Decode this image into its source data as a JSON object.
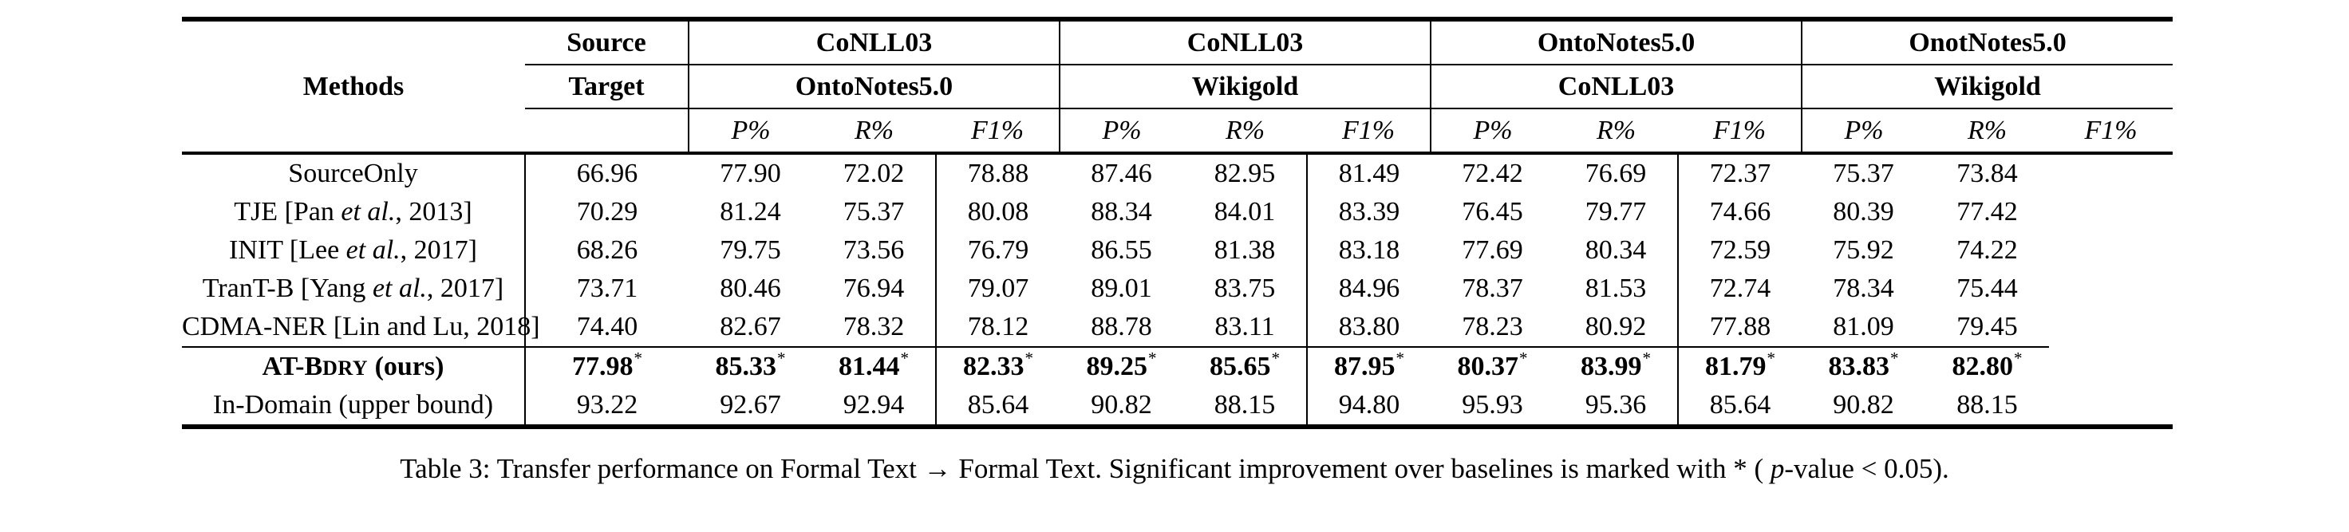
{
  "table": {
    "header": {
      "methods_label": "Methods",
      "source_label": "Source",
      "target_label": "Target",
      "groups": [
        {
          "source": "CoNLL03",
          "target": "OntoNotes5.0"
        },
        {
          "source": "CoNLL03",
          "target": "Wikigold"
        },
        {
          "source": "OntoNotes5.0",
          "target": "CoNLL03"
        },
        {
          "source": "OnotNotes5.0",
          "target": "Wikigold"
        }
      ],
      "metrics": [
        "P%",
        "R%",
        "F1%"
      ]
    },
    "star_marker": "*",
    "rows": [
      {
        "section": "baselines",
        "label": {
          "pre": "SourceOnly"
        },
        "values": [
          "66.96",
          "77.90",
          "72.02",
          "78.88",
          "87.46",
          "82.95",
          "81.49",
          "72.42",
          "76.69",
          "72.37",
          "75.37",
          "73.84"
        ]
      },
      {
        "section": "baselines",
        "label": {
          "pre": "TJE [Pan ",
          "italic": "et al.",
          "post": ", 2013]"
        },
        "values": [
          "70.29",
          "81.24",
          "75.37",
          "80.08",
          "88.34",
          "84.01",
          "83.39",
          "76.45",
          "79.77",
          "74.66",
          "80.39",
          "77.42"
        ]
      },
      {
        "section": "baselines",
        "label": {
          "pre": "INIT [Lee ",
          "italic": "et al.",
          "post": ", 2017]"
        },
        "values": [
          "68.26",
          "79.75",
          "73.56",
          "76.79",
          "86.55",
          "81.38",
          "83.18",
          "77.69",
          "80.34",
          "72.59",
          "75.92",
          "74.22"
        ]
      },
      {
        "section": "baselines",
        "label": {
          "pre": "TranT-B [Yang ",
          "italic": "et al.",
          "post": ", 2017]"
        },
        "values": [
          "73.71",
          "80.46",
          "76.94",
          "79.07",
          "89.01",
          "83.75",
          "84.96",
          "78.37",
          "81.53",
          "72.74",
          "78.34",
          "75.44"
        ]
      },
      {
        "section": "baselines",
        "label": {
          "pre": "CDMA-NER [Lin and Lu, 2018]"
        },
        "values": [
          "74.40",
          "82.67",
          "78.32",
          "78.12",
          "88.78",
          "83.11",
          "83.80",
          "78.23",
          "80.92",
          "77.88",
          "81.09",
          "79.45"
        ]
      },
      {
        "section": "ours",
        "emphasis": true,
        "starred": true,
        "label": {
          "pre": "AT-B",
          "smallcaps": "DRY",
          "post": " (ours)"
        },
        "values": [
          "77.98",
          "85.33",
          "81.44",
          "82.33",
          "89.25",
          "85.65",
          "87.95",
          "80.37",
          "83.99",
          "81.79",
          "83.83",
          "82.80"
        ]
      },
      {
        "section": "ours",
        "label": {
          "pre": "In-Domain (upper bound)"
        },
        "values": [
          "93.22",
          "92.67",
          "92.94",
          "85.64",
          "90.82",
          "88.15",
          "94.80",
          "95.93",
          "95.36",
          "85.64",
          "90.82",
          "88.15"
        ]
      }
    ]
  },
  "caption": {
    "before_p": "Table 3: Transfer performance on Formal Text → Formal Text. Significant improvement over baselines is marked with * ( ",
    "p_italic": "p",
    "after_p": "-value < 0.05)."
  }
}
